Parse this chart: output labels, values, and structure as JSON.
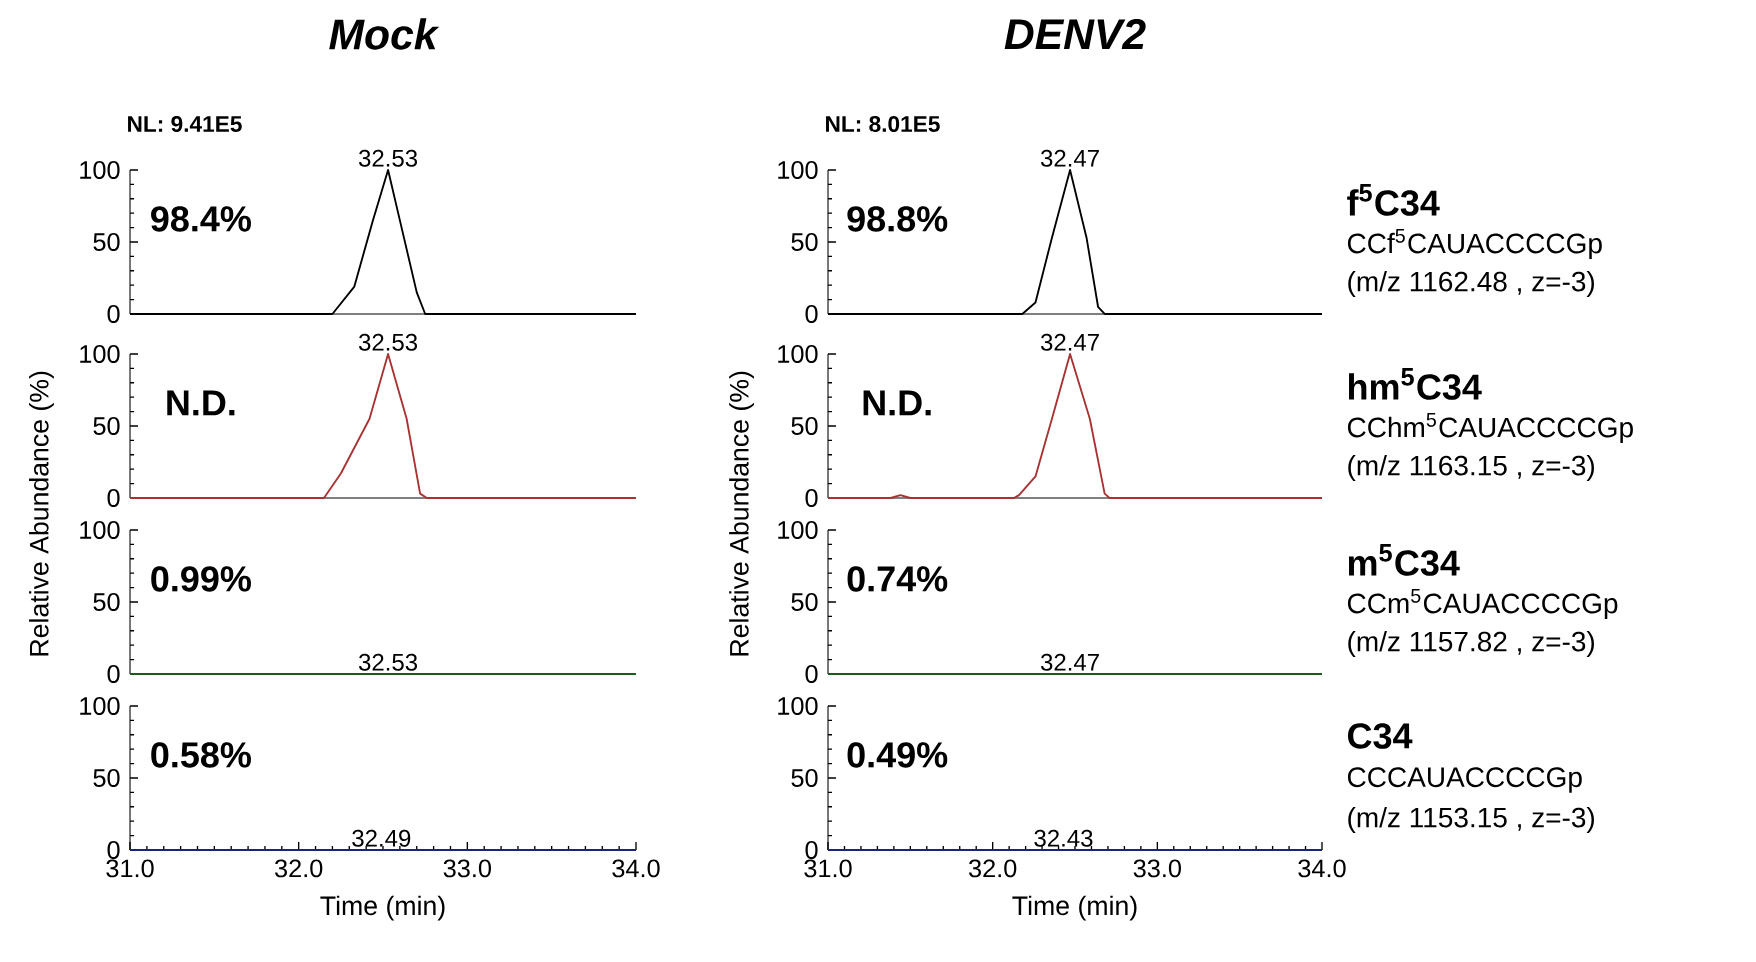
{
  "chart_data": [
    {
      "type": "line",
      "title": "Mock",
      "subtitle": "NL: 9.41E5",
      "xlim": [
        31,
        34
      ],
      "ylim": [
        0,
        100
      ],
      "yticks": [
        0,
        50,
        100
      ],
      "tick_labels": "y",
      "series": [
        {
          "color": "#000000",
          "x": [
            31,
            32.2,
            32.33,
            32.44,
            32.53,
            32.6,
            32.7,
            32.75,
            34
          ],
          "values": [
            0,
            0,
            19,
            65,
            100,
            65,
            15,
            0,
            0
          ]
        }
      ],
      "annotations": [
        "98.4%",
        {
          "text": "32.53",
          "x": 32.53,
          "y": 100
        }
      ]
    },
    {
      "type": "line",
      "title": "DENV2",
      "subtitle": "NL: 8.01E5",
      "xlim": [
        31,
        34
      ],
      "ylim": [
        0,
        100
      ],
      "yticks": [
        0,
        50,
        100
      ],
      "tick_labels": "y",
      "series": [
        {
          "color": "#000000",
          "x": [
            31,
            32.18,
            32.26,
            32.36,
            32.47,
            32.57,
            32.64,
            32.68,
            34
          ],
          "values": [
            0,
            0,
            8,
            53,
            100,
            53,
            5,
            0,
            0
          ]
        }
      ],
      "annotations": [
        "98.8%",
        {
          "text": "32.47",
          "x": 32.47,
          "y": 100
        },
        "f$^{5}$C34",
        "CCf$^{5}$CAUACCCCGp",
        "(m/z 1162.48 , z=-3)"
      ]
    },
    {
      "type": "line",
      "ylabel": "Relative Abundance (%)",
      "xlim": [
        31,
        34
      ],
      "ylim": [
        0,
        100
      ],
      "yticks": [
        0,
        50,
        100
      ],
      "tick_labels": "y",
      "series": [
        {
          "color": "#a83232",
          "x": [
            31,
            32.15,
            32.25,
            32.42,
            32.53,
            32.64,
            32.72,
            32.76,
            34
          ],
          "values": [
            0,
            0,
            17,
            55,
            100,
            55,
            3,
            0,
            0
          ]
        }
      ],
      "annotations": [
        "N.D.",
        {
          "text": "32.53",
          "x": 32.53,
          "y": 100
        }
      ]
    },
    {
      "type": "line",
      "ylabel": "Relative Abundance (%)",
      "xlim": [
        31,
        34
      ],
      "ylim": [
        0,
        100
      ],
      "yticks": [
        0,
        50,
        100
      ],
      "tick_labels": "y",
      "series": [
        {
          "color": "#a83232",
          "x": [
            31,
            31.38,
            31.44,
            31.5,
            32.13,
            32.16,
            32.26,
            32.36,
            32.47,
            32.59,
            32.68,
            32.71,
            34
          ],
          "values": [
            0,
            0,
            2,
            0,
            0,
            2,
            15,
            55,
            100,
            55,
            3,
            0,
            0
          ]
        }
      ],
      "annotations": [
        "N.D.",
        {
          "text": "32.47",
          "x": 32.47,
          "y": 100
        },
        "hm$^{5}$C34",
        "CChm$^{5}$CAUACCCCGp",
        "(m/z 1163.15 , z=-3)"
      ]
    },
    {
      "type": "line",
      "xlim": [
        31,
        34
      ],
      "ylim": [
        0,
        100
      ],
      "yticks": [
        0,
        50,
        100
      ],
      "tick_labels": "y",
      "series": [
        {
          "color": "#1e5a1e",
          "x": [
            31,
            34
          ],
          "values": [
            0,
            0
          ]
        }
      ],
      "annotations": [
        "0.99%",
        {
          "text": "32.53",
          "x": 32.53,
          "y": 0
        }
      ]
    },
    {
      "type": "line",
      "xlim": [
        31,
        34
      ],
      "ylim": [
        0,
        100
      ],
      "yticks": [
        0,
        50,
        100
      ],
      "tick_labels": "y",
      "series": [
        {
          "color": "#1e5a1e",
          "x": [
            31,
            34
          ],
          "values": [
            0,
            0
          ]
        }
      ],
      "annotations": [
        "0.74%",
        {
          "text": "32.47",
          "x": 32.47,
          "y": 0
        },
        "m$^{5}$C34",
        "CCm$^{5}$CAUACCCCGp",
        "(m/z 1157.82 , z=-3)"
      ]
    },
    {
      "type": "line",
      "xlabel": "Time (min)",
      "xlim": [
        31,
        34
      ],
      "ylim": [
        0,
        100
      ],
      "xticks": [
        {
          "value": 31,
          "label": "31.0"
        },
        {
          "value": 32,
          "label": "32.0"
        },
        {
          "value": 33,
          "label": "33.0"
        },
        {
          "value": 34,
          "label": "34.0"
        }
      ],
      "yticks": [
        0,
        50,
        100
      ],
      "series": [
        {
          "color": "#1a237e",
          "x": [
            31,
            34
          ],
          "values": [
            0,
            0
          ]
        }
      ],
      "annotations": [
        "0.58%",
        {
          "text": "32.49",
          "x": 32.49,
          "y": 0
        }
      ]
    },
    {
      "type": "line",
      "xlabel": "Time (min)",
      "xlim": [
        31,
        34
      ],
      "ylim": [
        0,
        100
      ],
      "xticks": [
        {
          "value": 31,
          "label": "31.0"
        },
        {
          "value": 32,
          "label": "32.0"
        },
        {
          "value": 33,
          "label": "33.0"
        },
        {
          "value": 34,
          "label": "34.0"
        }
      ],
      "yticks": [
        0,
        50,
        100
      ],
      "series": [
        {
          "color": "#1a237e",
          "x": [
            31,
            34
          ],
          "values": [
            0,
            0
          ]
        }
      ],
      "annotations": [
        "0.49%",
        {
          "text": "32.43",
          "x": 32.43,
          "y": 0
        },
        "C34",
        "CCCAUACCCCGp",
        "(m/z 1153.15 , z=-3)"
      ]
    }
  ]
}
